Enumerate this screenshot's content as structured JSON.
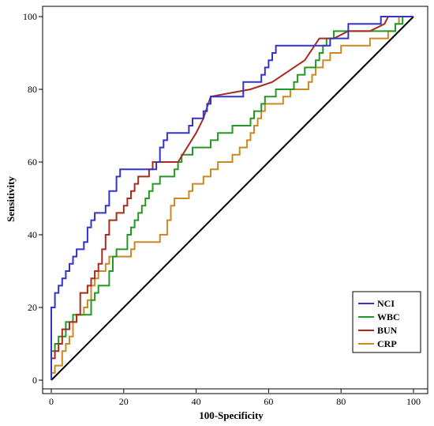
{
  "chart_data": {
    "type": "line",
    "title": "",
    "xlabel": "100-Specificity",
    "ylabel": "Sensitivity",
    "xlim": [
      0,
      100
    ],
    "ylim": [
      0,
      100
    ],
    "xticks": [
      0,
      20,
      40,
      60,
      80,
      100
    ],
    "yticks": [
      0,
      20,
      40,
      60,
      80,
      100
    ],
    "grid": false,
    "legend_position": "bottom-right",
    "reference_line": [
      [
        0,
        0
      ],
      [
        100,
        100
      ]
    ],
    "series": [
      {
        "name": "NCI",
        "color": "#3333cc",
        "points": [
          [
            0,
            0
          ],
          [
            0,
            20
          ],
          [
            1,
            20
          ],
          [
            1,
            24
          ],
          [
            2,
            24
          ],
          [
            2,
            26
          ],
          [
            3,
            26
          ],
          [
            3,
            28
          ],
          [
            4,
            28
          ],
          [
            4,
            30
          ],
          [
            5,
            30
          ],
          [
            5,
            32
          ],
          [
            6,
            32
          ],
          [
            6,
            34
          ],
          [
            7,
            34
          ],
          [
            7,
            36
          ],
          [
            9,
            36
          ],
          [
            9,
            38
          ],
          [
            10,
            38
          ],
          [
            10,
            42
          ],
          [
            11,
            42
          ],
          [
            11,
            44
          ],
          [
            12,
            44
          ],
          [
            12,
            46
          ],
          [
            15,
            46
          ],
          [
            15,
            48
          ],
          [
            16,
            48
          ],
          [
            16,
            52
          ],
          [
            18,
            52
          ],
          [
            18,
            56
          ],
          [
            19,
            56
          ],
          [
            19,
            58
          ],
          [
            29,
            58
          ],
          [
            29,
            60
          ],
          [
            30,
            60
          ],
          [
            30,
            64
          ],
          [
            31,
            64
          ],
          [
            31,
            66
          ],
          [
            32,
            66
          ],
          [
            32,
            68
          ],
          [
            38,
            68
          ],
          [
            38,
            70
          ],
          [
            39,
            70
          ],
          [
            39,
            72
          ],
          [
            42,
            72
          ],
          [
            42,
            74
          ],
          [
            43,
            74
          ],
          [
            43,
            76
          ],
          [
            44,
            76
          ],
          [
            44,
            78
          ],
          [
            53,
            78
          ],
          [
            53,
            82
          ],
          [
            58,
            82
          ],
          [
            58,
            84
          ],
          [
            59,
            84
          ],
          [
            59,
            86
          ],
          [
            60,
            86
          ],
          [
            60,
            88
          ],
          [
            61,
            88
          ],
          [
            61,
            90
          ],
          [
            62,
            90
          ],
          [
            62,
            92
          ],
          [
            77,
            92
          ],
          [
            77,
            94
          ],
          [
            82,
            94
          ],
          [
            82,
            98
          ],
          [
            91,
            98
          ],
          [
            91,
            100
          ],
          [
            100,
            100
          ]
        ]
      },
      {
        "name": "WBC",
        "color": "#229922",
        "points": [
          [
            0,
            0
          ],
          [
            0,
            8
          ],
          [
            1,
            8
          ],
          [
            1,
            10
          ],
          [
            2,
            10
          ],
          [
            2,
            12
          ],
          [
            4,
            12
          ],
          [
            4,
            16
          ],
          [
            6,
            16
          ],
          [
            6,
            18
          ],
          [
            11,
            18
          ],
          [
            11,
            22
          ],
          [
            12,
            22
          ],
          [
            12,
            24
          ],
          [
            13,
            24
          ],
          [
            13,
            26
          ],
          [
            16,
            26
          ],
          [
            16,
            30
          ],
          [
            17,
            30
          ],
          [
            17,
            34
          ],
          [
            18,
            34
          ],
          [
            18,
            36
          ],
          [
            21,
            36
          ],
          [
            21,
            40
          ],
          [
            22,
            40
          ],
          [
            22,
            42
          ],
          [
            23,
            42
          ],
          [
            23,
            44
          ],
          [
            24,
            44
          ],
          [
            24,
            46
          ],
          [
            25,
            46
          ],
          [
            25,
            48
          ],
          [
            26,
            48
          ],
          [
            26,
            50
          ],
          [
            27,
            50
          ],
          [
            27,
            52
          ],
          [
            28,
            52
          ],
          [
            28,
            54
          ],
          [
            30,
            54
          ],
          [
            30,
            56
          ],
          [
            34,
            56
          ],
          [
            34,
            58
          ],
          [
            35,
            58
          ],
          [
            35,
            60
          ],
          [
            36,
            60
          ],
          [
            36,
            62
          ],
          [
            39,
            62
          ],
          [
            39,
            64
          ],
          [
            44,
            64
          ],
          [
            44,
            66
          ],
          [
            46,
            66
          ],
          [
            46,
            68
          ],
          [
            50,
            68
          ],
          [
            50,
            70
          ],
          [
            55,
            70
          ],
          [
            55,
            72
          ],
          [
            56,
            72
          ],
          [
            56,
            74
          ],
          [
            58,
            74
          ],
          [
            58,
            76
          ],
          [
            59,
            76
          ],
          [
            59,
            78
          ],
          [
            62,
            78
          ],
          [
            62,
            80
          ],
          [
            67,
            80
          ],
          [
            67,
            82
          ],
          [
            68,
            82
          ],
          [
            68,
            84
          ],
          [
            70,
            84
          ],
          [
            70,
            86
          ],
          [
            73,
            86
          ],
          [
            73,
            88
          ],
          [
            74,
            88
          ],
          [
            74,
            90
          ],
          [
            75,
            90
          ],
          [
            75,
            92
          ],
          [
            76,
            92
          ],
          [
            76,
            94
          ],
          [
            78,
            94
          ],
          [
            78,
            96
          ],
          [
            95,
            96
          ],
          [
            95,
            98
          ],
          [
            97,
            98
          ],
          [
            97,
            100
          ],
          [
            100,
            100
          ]
        ]
      },
      {
        "name": "BUN",
        "color": "#a82b1c",
        "points": [
          [
            0,
            0
          ],
          [
            0,
            6
          ],
          [
            1,
            6
          ],
          [
            1,
            8
          ],
          [
            2,
            8
          ],
          [
            2,
            10
          ],
          [
            3,
            10
          ],
          [
            3,
            14
          ],
          [
            5,
            14
          ],
          [
            5,
            16
          ],
          [
            7,
            16
          ],
          [
            7,
            18
          ],
          [
            8,
            18
          ],
          [
            8,
            24
          ],
          [
            10,
            24
          ],
          [
            10,
            26
          ],
          [
            11,
            26
          ],
          [
            11,
            28
          ],
          [
            12,
            28
          ],
          [
            12,
            30
          ],
          [
            13,
            30
          ],
          [
            13,
            32
          ],
          [
            14,
            32
          ],
          [
            14,
            36
          ],
          [
            15,
            36
          ],
          [
            15,
            40
          ],
          [
            16,
            40
          ],
          [
            16,
            44
          ],
          [
            18,
            44
          ],
          [
            18,
            46
          ],
          [
            20,
            46
          ],
          [
            20,
            48
          ],
          [
            21,
            48
          ],
          [
            21,
            50
          ],
          [
            22,
            50
          ],
          [
            22,
            52
          ],
          [
            23,
            52
          ],
          [
            23,
            54
          ],
          [
            24,
            54
          ],
          [
            24,
            56
          ],
          [
            27,
            56
          ],
          [
            27,
            58
          ],
          [
            28,
            58
          ],
          [
            28,
            60
          ],
          [
            35,
            60
          ],
          [
            40,
            68
          ],
          [
            42,
            72
          ],
          [
            44,
            78
          ],
          [
            55,
            80
          ],
          [
            61,
            82
          ],
          [
            70,
            88
          ],
          [
            74,
            94
          ],
          [
            78,
            94
          ],
          [
            82,
            96
          ],
          [
            88,
            96
          ],
          [
            92,
            98
          ],
          [
            93,
            100
          ],
          [
            100,
            100
          ]
        ]
      },
      {
        "name": "CRP",
        "color": "#cc8822",
        "points": [
          [
            0,
            0
          ],
          [
            0,
            2
          ],
          [
            1,
            2
          ],
          [
            1,
            4
          ],
          [
            3,
            4
          ],
          [
            3,
            8
          ],
          [
            4,
            8
          ],
          [
            4,
            10
          ],
          [
            5,
            10
          ],
          [
            5,
            12
          ],
          [
            6,
            12
          ],
          [
            6,
            16
          ],
          [
            7,
            16
          ],
          [
            7,
            18
          ],
          [
            9,
            18
          ],
          [
            9,
            20
          ],
          [
            10,
            20
          ],
          [
            10,
            22
          ],
          [
            11,
            22
          ],
          [
            11,
            26
          ],
          [
            12,
            26
          ],
          [
            12,
            28
          ],
          [
            13,
            28
          ],
          [
            13,
            30
          ],
          [
            15,
            30
          ],
          [
            15,
            32
          ],
          [
            16,
            32
          ],
          [
            16,
            34
          ],
          [
            22,
            34
          ],
          [
            22,
            36
          ],
          [
            23,
            36
          ],
          [
            23,
            38
          ],
          [
            30,
            38
          ],
          [
            30,
            40
          ],
          [
            32,
            40
          ],
          [
            32,
            44
          ],
          [
            33,
            44
          ],
          [
            33,
            48
          ],
          [
            34,
            48
          ],
          [
            34,
            50
          ],
          [
            38,
            50
          ],
          [
            38,
            52
          ],
          [
            39,
            52
          ],
          [
            39,
            54
          ],
          [
            42,
            54
          ],
          [
            42,
            56
          ],
          [
            44,
            56
          ],
          [
            44,
            58
          ],
          [
            46,
            58
          ],
          [
            46,
            60
          ],
          [
            50,
            60
          ],
          [
            50,
            62
          ],
          [
            52,
            62
          ],
          [
            52,
            64
          ],
          [
            54,
            64
          ],
          [
            54,
            66
          ],
          [
            55,
            66
          ],
          [
            55,
            68
          ],
          [
            56,
            68
          ],
          [
            56,
            70
          ],
          [
            57,
            70
          ],
          [
            57,
            72
          ],
          [
            58,
            72
          ],
          [
            58,
            74
          ],
          [
            59,
            74
          ],
          [
            59,
            76
          ],
          [
            64,
            76
          ],
          [
            64,
            78
          ],
          [
            66,
            78
          ],
          [
            66,
            80
          ],
          [
            71,
            80
          ],
          [
            71,
            82
          ],
          [
            72,
            82
          ],
          [
            72,
            84
          ],
          [
            73,
            84
          ],
          [
            73,
            86
          ],
          [
            75,
            86
          ],
          [
            75,
            88
          ],
          [
            77,
            88
          ],
          [
            77,
            90
          ],
          [
            80,
            90
          ],
          [
            80,
            92
          ],
          [
            88,
            92
          ],
          [
            88,
            94
          ],
          [
            93,
            94
          ],
          [
            93,
            96
          ],
          [
            95,
            96
          ],
          [
            95,
            98
          ],
          [
            96,
            98
          ],
          [
            96,
            100
          ],
          [
            100,
            100
          ]
        ]
      }
    ]
  }
}
